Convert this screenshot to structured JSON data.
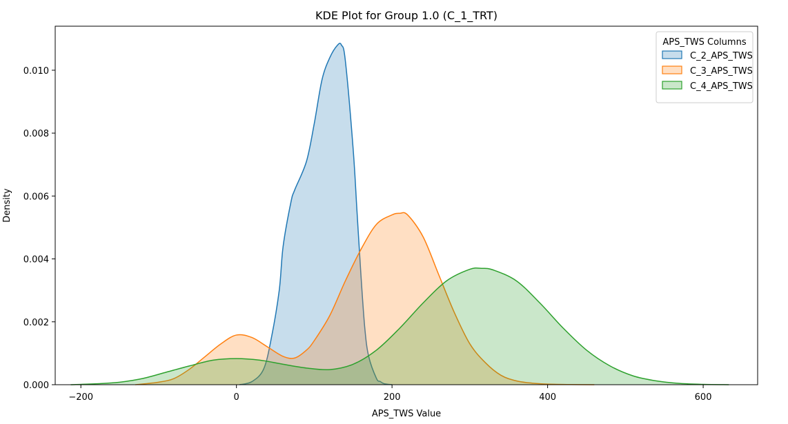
{
  "chart_data": {
    "type": "area",
    "title": "KDE Plot for Group 1.0 (C_1_TRT)",
    "xlabel": "APS_TWS Value",
    "ylabel": "Density",
    "xlim": [
      -233,
      670
    ],
    "ylim": [
      0,
      0.0114
    ],
    "xticks": [
      -200,
      0,
      200,
      400,
      600
    ],
    "xtick_labels": [
      "−200",
      "0",
      "200",
      "400",
      "600"
    ],
    "yticks": [
      0,
      0.002,
      0.004,
      0.006,
      0.008,
      0.01
    ],
    "ytick_labels": [
      "0.000",
      "0.002",
      "0.004",
      "0.006",
      "0.008",
      "0.010"
    ],
    "grid": false,
    "legend": {
      "title": "APS_TWS Columns",
      "placement": "upper right"
    },
    "series": [
      {
        "name": "C_2_APS_TWS",
        "color": "#1f77b4",
        "x": [
          4,
          20,
          35,
          45,
          55,
          60,
          70,
          75,
          90,
          100,
          110,
          120,
          130,
          135,
          140,
          150,
          155,
          160,
          165,
          170,
          180,
          185,
          190,
          200
        ],
        "y": [
          0,
          0.0001,
          0.0005,
          0.0015,
          0.003,
          0.0044,
          0.0058,
          0.0062,
          0.0071,
          0.0083,
          0.0097,
          0.0104,
          0.0108,
          0.0108,
          0.0103,
          0.0075,
          0.0055,
          0.0035,
          0.0018,
          0.0009,
          0.0002,
          0.0001,
          3e-05,
          0
        ]
      },
      {
        "name": "C_3_APS_TWS",
        "color": "#ff7f0e",
        "x": [
          -130,
          -100,
          -80,
          -60,
          -40,
          -20,
          0,
          20,
          40,
          60,
          75,
          90,
          100,
          120,
          140,
          160,
          180,
          200,
          210,
          220,
          240,
          260,
          280,
          300,
          320,
          340,
          360,
          380,
          400,
          430,
          460
        ],
        "y": [
          0,
          8e-05,
          0.0002,
          0.0005,
          0.0009,
          0.0013,
          0.00158,
          0.0015,
          0.0012,
          0.0009,
          0.00085,
          0.0011,
          0.0014,
          0.0022,
          0.0033,
          0.0043,
          0.0051,
          0.0054,
          0.00545,
          0.0054,
          0.0047,
          0.0035,
          0.0023,
          0.0013,
          0.0007,
          0.0003,
          0.00012,
          5e-05,
          2e-05,
          5e-06,
          0
        ]
      },
      {
        "name": "C_4_APS_TWS",
        "color": "#2ca02c",
        "x": [
          -213,
          -180,
          -150,
          -120,
          -90,
          -60,
          -30,
          0,
          30,
          60,
          90,
          120,
          150,
          180,
          210,
          240,
          270,
          300,
          315,
          330,
          360,
          390,
          420,
          450,
          480,
          510,
          540,
          570,
          600,
          633
        ],
        "y": [
          0,
          3e-05,
          8e-05,
          0.0002,
          0.0004,
          0.0006,
          0.00078,
          0.00083,
          0.00078,
          0.00065,
          0.00053,
          0.00048,
          0.00065,
          0.0011,
          0.0018,
          0.0026,
          0.0033,
          0.00367,
          0.0037,
          0.00365,
          0.0033,
          0.0026,
          0.0018,
          0.0011,
          0.0006,
          0.00028,
          0.00012,
          4e-05,
          1e-05,
          0
        ]
      }
    ]
  }
}
